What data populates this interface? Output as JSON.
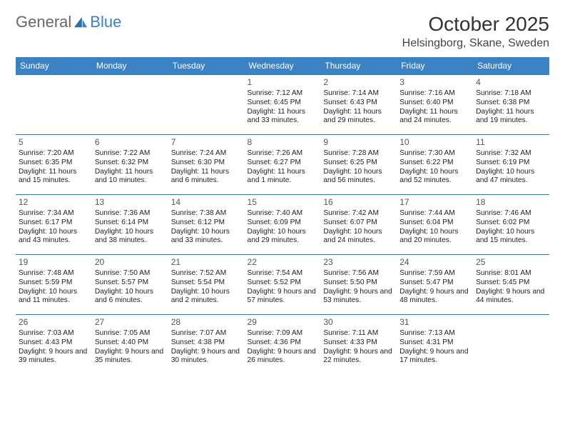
{
  "brand": {
    "part1": "General",
    "part2": "Blue",
    "accent_color": "#3b82c4"
  },
  "title": "October 2025",
  "location": "Helsingborg, Skane, Sweden",
  "day_headers": [
    "Sunday",
    "Monday",
    "Tuesday",
    "Wednesday",
    "Thursday",
    "Friday",
    "Saturday"
  ],
  "header_bg": "#3b82c4",
  "border_color": "#3b73a6",
  "weeks": [
    [
      null,
      null,
      null,
      {
        "d": "1",
        "sr": "7:12 AM",
        "ss": "6:45 PM",
        "dl": "11 hours and 33 minutes."
      },
      {
        "d": "2",
        "sr": "7:14 AM",
        "ss": "6:43 PM",
        "dl": "11 hours and 29 minutes."
      },
      {
        "d": "3",
        "sr": "7:16 AM",
        "ss": "6:40 PM",
        "dl": "11 hours and 24 minutes."
      },
      {
        "d": "4",
        "sr": "7:18 AM",
        "ss": "6:38 PM",
        "dl": "11 hours and 19 minutes."
      }
    ],
    [
      {
        "d": "5",
        "sr": "7:20 AM",
        "ss": "6:35 PM",
        "dl": "11 hours and 15 minutes."
      },
      {
        "d": "6",
        "sr": "7:22 AM",
        "ss": "6:32 PM",
        "dl": "11 hours and 10 minutes."
      },
      {
        "d": "7",
        "sr": "7:24 AM",
        "ss": "6:30 PM",
        "dl": "11 hours and 6 minutes."
      },
      {
        "d": "8",
        "sr": "7:26 AM",
        "ss": "6:27 PM",
        "dl": "11 hours and 1 minute."
      },
      {
        "d": "9",
        "sr": "7:28 AM",
        "ss": "6:25 PM",
        "dl": "10 hours and 56 minutes."
      },
      {
        "d": "10",
        "sr": "7:30 AM",
        "ss": "6:22 PM",
        "dl": "10 hours and 52 minutes."
      },
      {
        "d": "11",
        "sr": "7:32 AM",
        "ss": "6:19 PM",
        "dl": "10 hours and 47 minutes."
      }
    ],
    [
      {
        "d": "12",
        "sr": "7:34 AM",
        "ss": "6:17 PM",
        "dl": "10 hours and 43 minutes."
      },
      {
        "d": "13",
        "sr": "7:36 AM",
        "ss": "6:14 PM",
        "dl": "10 hours and 38 minutes."
      },
      {
        "d": "14",
        "sr": "7:38 AM",
        "ss": "6:12 PM",
        "dl": "10 hours and 33 minutes."
      },
      {
        "d": "15",
        "sr": "7:40 AM",
        "ss": "6:09 PM",
        "dl": "10 hours and 29 minutes."
      },
      {
        "d": "16",
        "sr": "7:42 AM",
        "ss": "6:07 PM",
        "dl": "10 hours and 24 minutes."
      },
      {
        "d": "17",
        "sr": "7:44 AM",
        "ss": "6:04 PM",
        "dl": "10 hours and 20 minutes."
      },
      {
        "d": "18",
        "sr": "7:46 AM",
        "ss": "6:02 PM",
        "dl": "10 hours and 15 minutes."
      }
    ],
    [
      {
        "d": "19",
        "sr": "7:48 AM",
        "ss": "5:59 PM",
        "dl": "10 hours and 11 minutes."
      },
      {
        "d": "20",
        "sr": "7:50 AM",
        "ss": "5:57 PM",
        "dl": "10 hours and 6 minutes."
      },
      {
        "d": "21",
        "sr": "7:52 AM",
        "ss": "5:54 PM",
        "dl": "10 hours and 2 minutes."
      },
      {
        "d": "22",
        "sr": "7:54 AM",
        "ss": "5:52 PM",
        "dl": "9 hours and 57 minutes."
      },
      {
        "d": "23",
        "sr": "7:56 AM",
        "ss": "5:50 PM",
        "dl": "9 hours and 53 minutes."
      },
      {
        "d": "24",
        "sr": "7:59 AM",
        "ss": "5:47 PM",
        "dl": "9 hours and 48 minutes."
      },
      {
        "d": "25",
        "sr": "8:01 AM",
        "ss": "5:45 PM",
        "dl": "9 hours and 44 minutes."
      }
    ],
    [
      {
        "d": "26",
        "sr": "7:03 AM",
        "ss": "4:43 PM",
        "dl": "9 hours and 39 minutes."
      },
      {
        "d": "27",
        "sr": "7:05 AM",
        "ss": "4:40 PM",
        "dl": "9 hours and 35 minutes."
      },
      {
        "d": "28",
        "sr": "7:07 AM",
        "ss": "4:38 PM",
        "dl": "9 hours and 30 minutes."
      },
      {
        "d": "29",
        "sr": "7:09 AM",
        "ss": "4:36 PM",
        "dl": "9 hours and 26 minutes."
      },
      {
        "d": "30",
        "sr": "7:11 AM",
        "ss": "4:33 PM",
        "dl": "9 hours and 22 minutes."
      },
      {
        "d": "31",
        "sr": "7:13 AM",
        "ss": "4:31 PM",
        "dl": "9 hours and 17 minutes."
      },
      null
    ]
  ],
  "labels": {
    "sunrise": "Sunrise:",
    "sunset": "Sunset:",
    "daylight": "Daylight:"
  }
}
